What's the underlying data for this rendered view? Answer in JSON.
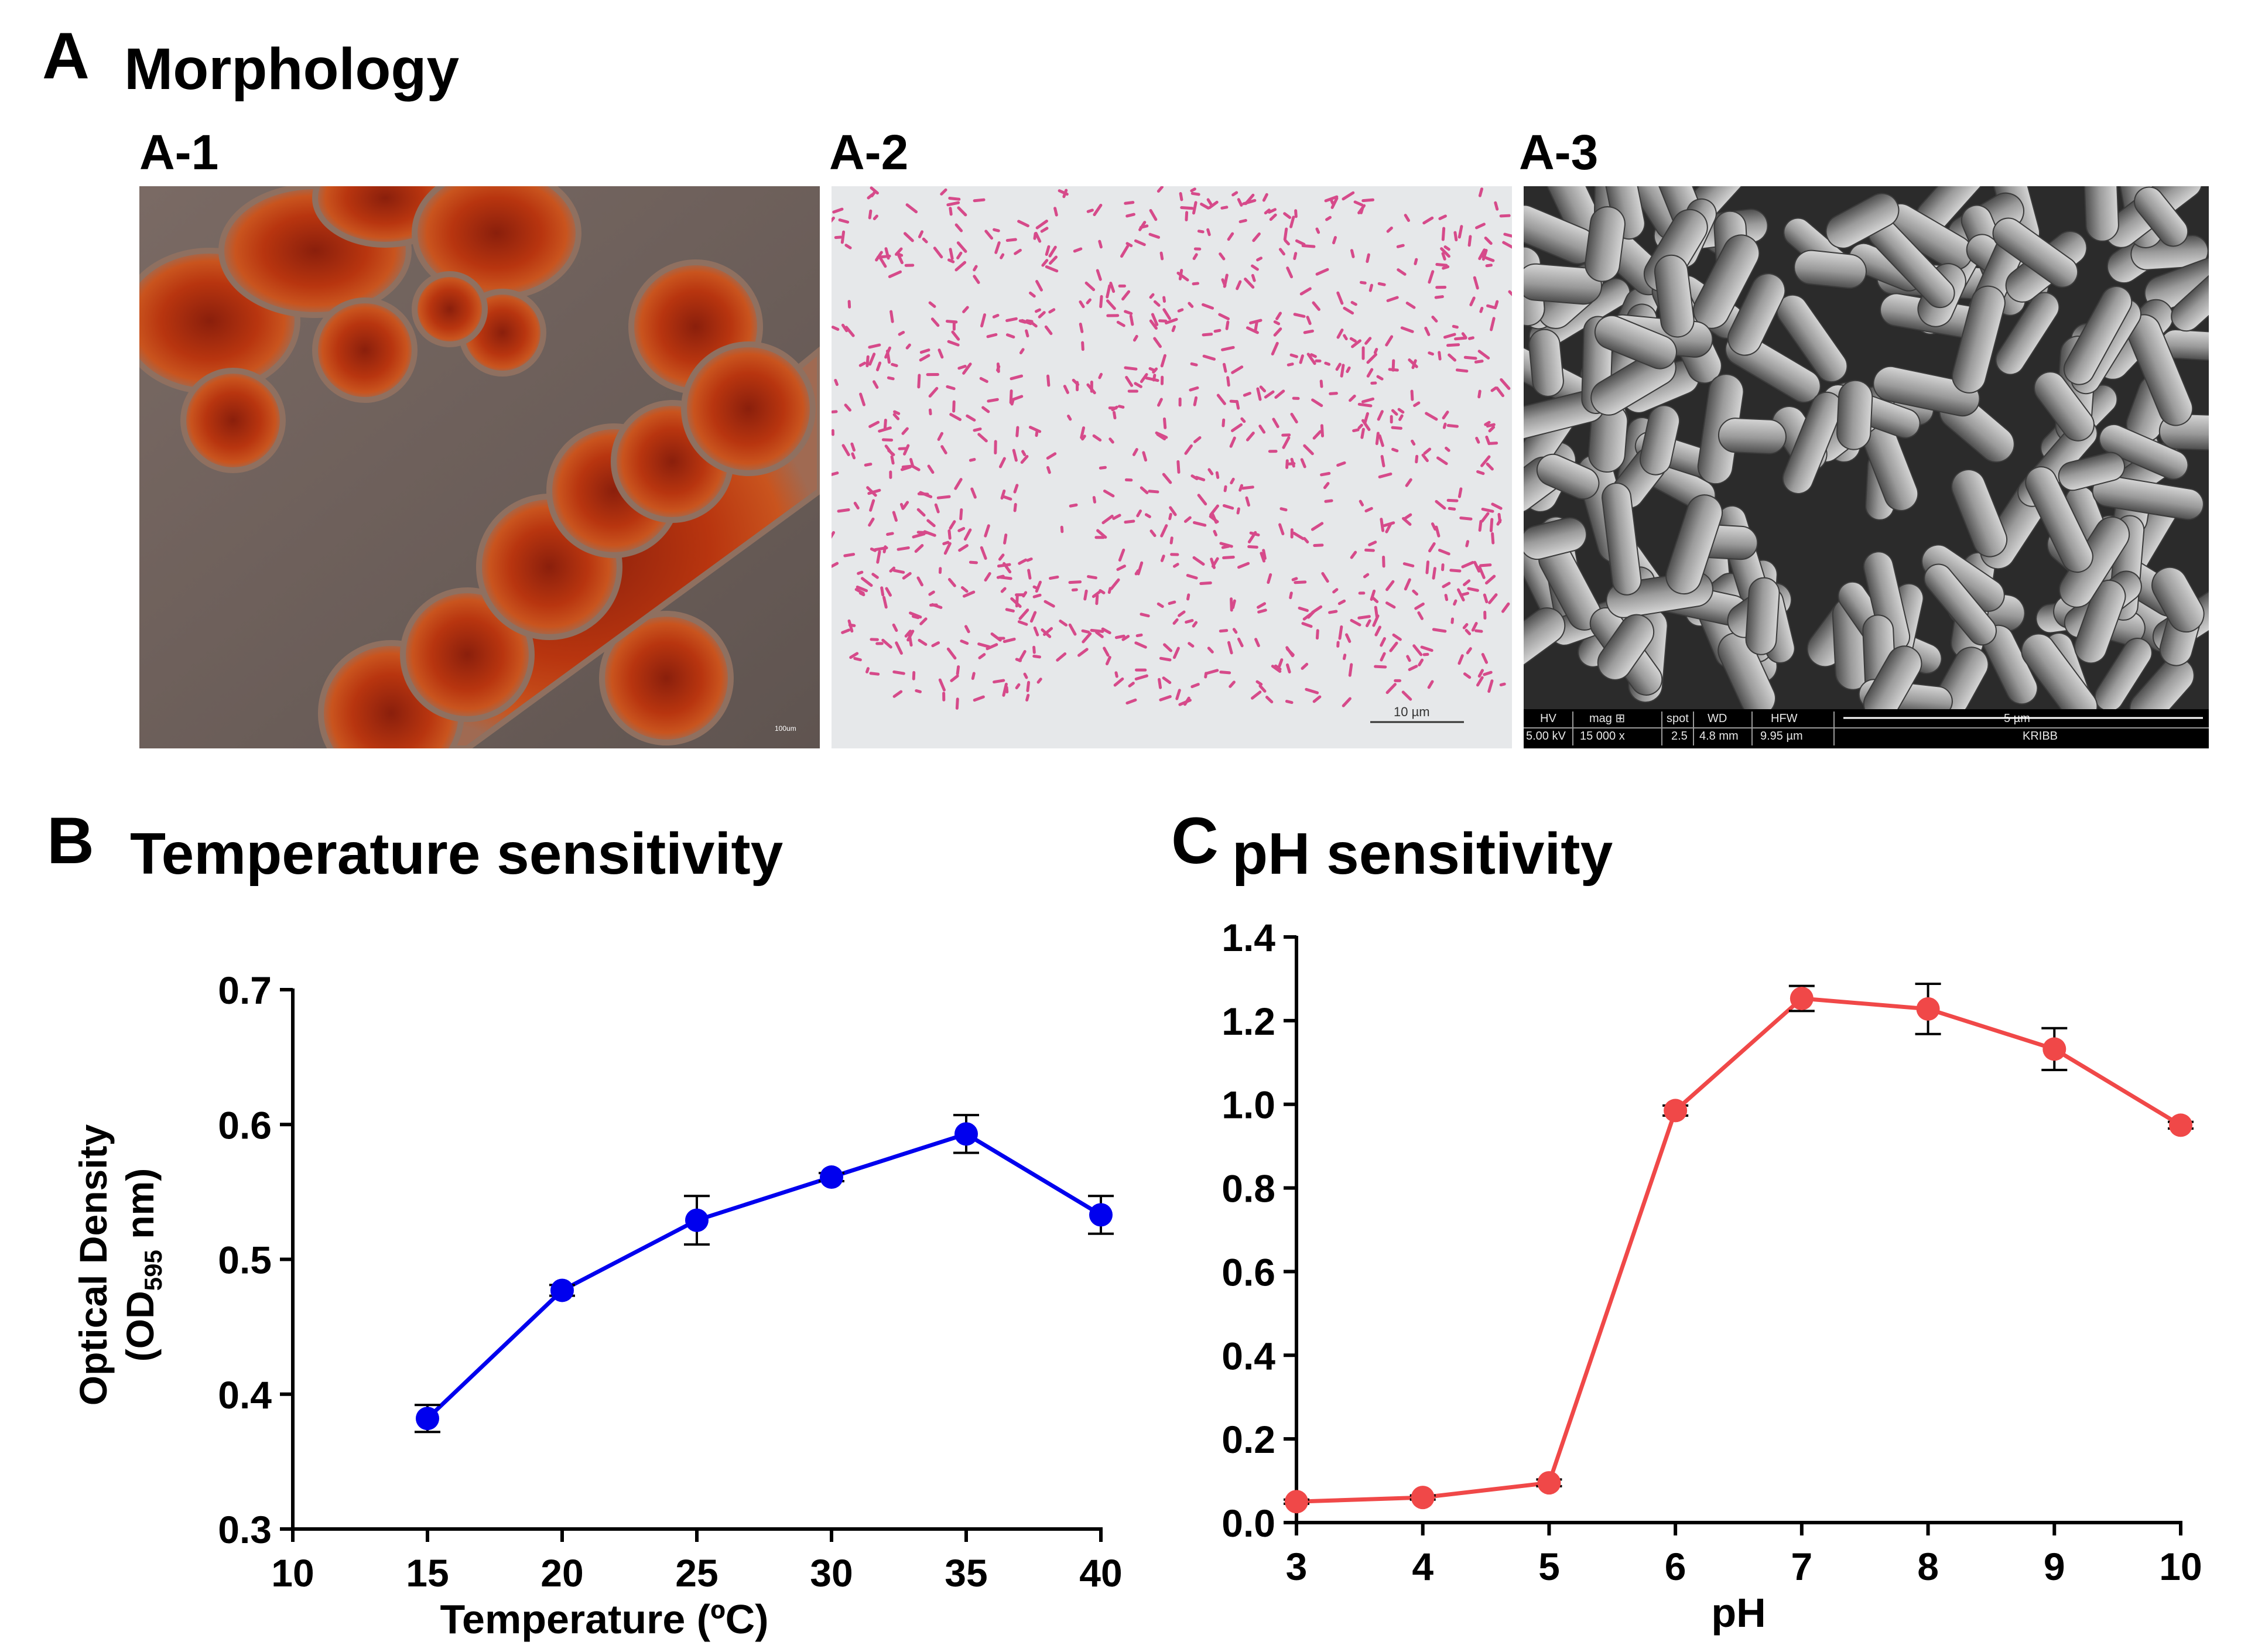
{
  "figure": {
    "panel_a": {
      "letter": "A",
      "title": "Morphology",
      "images": [
        {
          "label": "A-1",
          "scale_bar": "100um"
        },
        {
          "label": "A-2",
          "scale_bar": "10 µm"
        },
        {
          "label": "A-3",
          "sem_info": {
            "headers": [
              "HV",
              "mag ⊞",
              "spot",
              "WD",
              "HFW"
            ],
            "values": [
              "5.00 kV",
              "15 000 x",
              "2.5",
              "4.8 mm",
              "9.95 µm"
            ],
            "scale_bar": "5 µm",
            "lab": "KRIBB"
          }
        }
      ]
    },
    "panel_b": {
      "letter": "B",
      "title": "Temperature sensitivity"
    },
    "panel_c": {
      "letter": "C",
      "title": "pH sensitivity"
    }
  },
  "chart_data": [
    {
      "type": "line",
      "title": "Temperature sensitivity",
      "xlabel": "Temperature (ºC)",
      "ylabel_line1": "Optical Density",
      "ylabel_line2_prefix": "(OD",
      "ylabel_line2_sub": "595",
      "ylabel_line2_suffix": " nm)",
      "xlim": [
        10,
        40
      ],
      "ylim": [
        0.3,
        0.7
      ],
      "xticks": [
        "10",
        "15",
        "20",
        "25",
        "30",
        "35",
        "40"
      ],
      "yticks": [
        "0.3",
        "0.4",
        "0.5",
        "0.6",
        "0.7"
      ],
      "color": "#0000ee",
      "grid": false,
      "series": [
        {
          "x": [
            15,
            20,
            25,
            30,
            35,
            40
          ],
          "y": [
            0.382,
            0.477,
            0.529,
            0.561,
            0.593,
            0.533
          ],
          "err": [
            0.01,
            0.004,
            0.018,
            0.003,
            0.014,
            0.014
          ]
        }
      ]
    },
    {
      "type": "line",
      "title": "pH sensitivity",
      "xlabel": "pH",
      "ylabel": "",
      "xlim": [
        3,
        10
      ],
      "ylim": [
        0.0,
        1.4
      ],
      "xticks": [
        "3",
        "4",
        "5",
        "6",
        "7",
        "8",
        "9",
        "10"
      ],
      "yticks": [
        "0.0",
        "0.2",
        "0.4",
        "0.6",
        "0.8",
        "1.0",
        "1.2",
        "1.4"
      ],
      "color": "#f04848",
      "grid": false,
      "series": [
        {
          "x": [
            3,
            4,
            5,
            6,
            7,
            8,
            9,
            10
          ],
          "y": [
            0.05,
            0.06,
            0.095,
            0.985,
            1.253,
            1.228,
            1.132,
            0.95
          ],
          "err": [
            0.005,
            0.005,
            0.008,
            0.012,
            0.03,
            0.06,
            0.05,
            0.008
          ]
        }
      ]
    }
  ]
}
